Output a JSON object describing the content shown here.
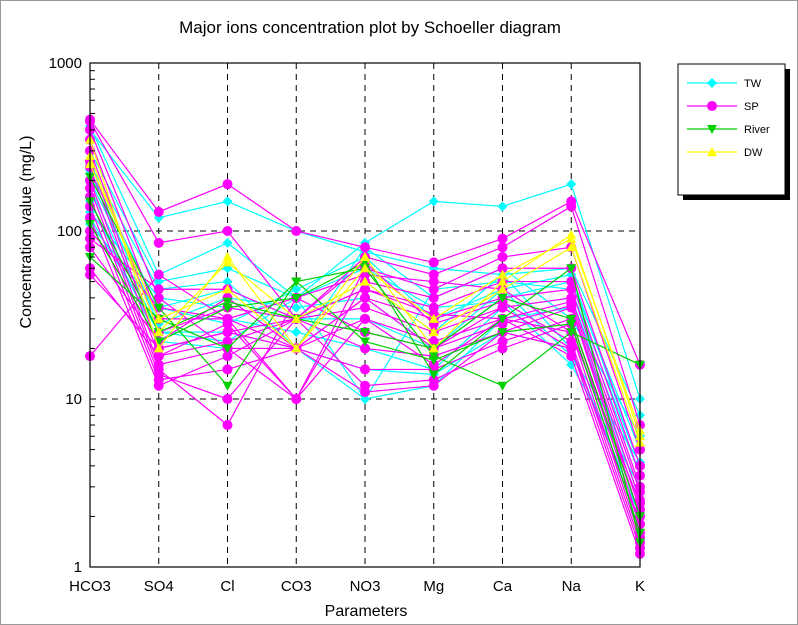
{
  "chart_data": {
    "type": "line",
    "title": "Major ions concentration plot by Schoeller diagram",
    "xlabel": "Parameters",
    "ylabel": "Concentration value (mg/L)",
    "y_scale": "log",
    "ylim": [
      1,
      1000
    ],
    "y_ticks": [
      "1",
      "10",
      "100",
      "1000"
    ],
    "grid": "dashed major gridlines",
    "legend_position": "top-right",
    "categories": [
      "HCO3",
      "SO4",
      "Cl",
      "CO3",
      "NO3",
      "Mg",
      "Ca",
      "Na",
      "K"
    ],
    "series": [
      {
        "name": "TW",
        "color": "#00ffff",
        "marker": "diamond",
        "lines": [
          [
            420,
            55,
            85,
            40,
            85,
            150,
            140,
            190,
            10
          ],
          [
            400,
            120,
            150,
            100,
            75,
            60,
            55,
            60,
            8
          ],
          [
            300,
            50,
            60,
            40,
            10,
            45,
            50,
            45,
            4
          ],
          [
            250,
            45,
            50,
            20,
            80,
            40,
            60,
            30,
            6
          ],
          [
            230,
            35,
            45,
            30,
            30,
            20,
            40,
            50,
            5
          ],
          [
            220,
            28,
            40,
            35,
            40,
            20,
            45,
            55,
            4
          ],
          [
            200,
            30,
            30,
            25,
            20,
            15,
            35,
            40,
            3.5
          ],
          [
            180,
            25,
            25,
            20,
            10,
            12,
            30,
            35,
            2.5
          ],
          [
            150,
            22,
            20,
            20,
            15,
            14,
            25,
            20,
            2
          ],
          [
            130,
            40,
            35,
            30,
            50,
            25,
            55,
            20,
            1.8
          ],
          [
            120,
            25,
            22,
            40,
            60,
            35,
            38,
            16,
            3
          ],
          [
            110,
            35,
            28,
            45,
            70,
            30,
            45,
            18,
            4.2
          ]
        ]
      },
      {
        "name": "SP",
        "color": "#ff00ff",
        "marker": "circle",
        "lines": [
          [
            460,
            130,
            190,
            100,
            80,
            65,
            90,
            150,
            16
          ],
          [
            450,
            85,
            100,
            30,
            70,
            55,
            80,
            140,
            7
          ],
          [
            400,
            40,
            20,
            10,
            60,
            45,
            70,
            80,
            5
          ],
          [
            350,
            30,
            30,
            10,
            50,
            40,
            60,
            60,
            4
          ],
          [
            300,
            25,
            35,
            30,
            45,
            35,
            50,
            50,
            3.5
          ],
          [
            260,
            20,
            25,
            20,
            40,
            30,
            40,
            45,
            3
          ],
          [
            240,
            18,
            22,
            30,
            35,
            25,
            35,
            40,
            2.8
          ],
          [
            200,
            16,
            20,
            20,
            30,
            22,
            30,
            38,
            2.5
          ],
          [
            180,
            15,
            7,
            40,
            25,
            20,
            28,
            36,
            2.2
          ],
          [
            160,
            14,
            10,
            30,
            20,
            18,
            25,
            35,
            2
          ],
          [
            140,
            13,
            15,
            20,
            15,
            15,
            22,
            30,
            1.8
          ],
          [
            120,
            12,
            18,
            30,
            12,
            13,
            20,
            28,
            1.6
          ],
          [
            100,
            35,
            30,
            40,
            55,
            50,
            45,
            25,
            1.5
          ],
          [
            90,
            45,
            45,
            30,
            65,
            28,
            38,
            22,
            1.4
          ],
          [
            80,
            22,
            40,
            20,
            11,
            12,
            25,
            20,
            1.3
          ],
          [
            60,
            18,
            28,
            10,
            30,
            16,
            30,
            18,
            1.2
          ],
          [
            55,
            20,
            25,
            30,
            45,
            32,
            30,
            25,
            2.4
          ],
          [
            18,
            55,
            30,
            20,
            40,
            20,
            35,
            20,
            1.8
          ]
        ]
      },
      {
        "name": "River",
        "color": "#00d000",
        "marker": "triangle-down",
        "lines": [
          [
            210,
            35,
            12,
            50,
            60,
            18,
            12,
            25,
            16
          ],
          [
            150,
            25,
            38,
            30,
            25,
            20,
            40,
            30,
            2
          ],
          [
            110,
            22,
            35,
            40,
            65,
            14,
            30,
            60,
            1.4
          ],
          [
            70,
            30,
            20,
            50,
            22,
            17,
            25,
            28,
            1.6
          ]
        ]
      },
      {
        "name": "DW",
        "color": "#ffff00",
        "marker": "triangle-up",
        "lines": [
          [
            350,
            20,
            70,
            20,
            70,
            20,
            50,
            95,
            6
          ],
          [
            280,
            25,
            65,
            30,
            50,
            25,
            45,
            80,
            5.5
          ],
          [
            250,
            30,
            45,
            20,
            60,
            30,
            55,
            90,
            6.5
          ]
        ]
      }
    ]
  }
}
